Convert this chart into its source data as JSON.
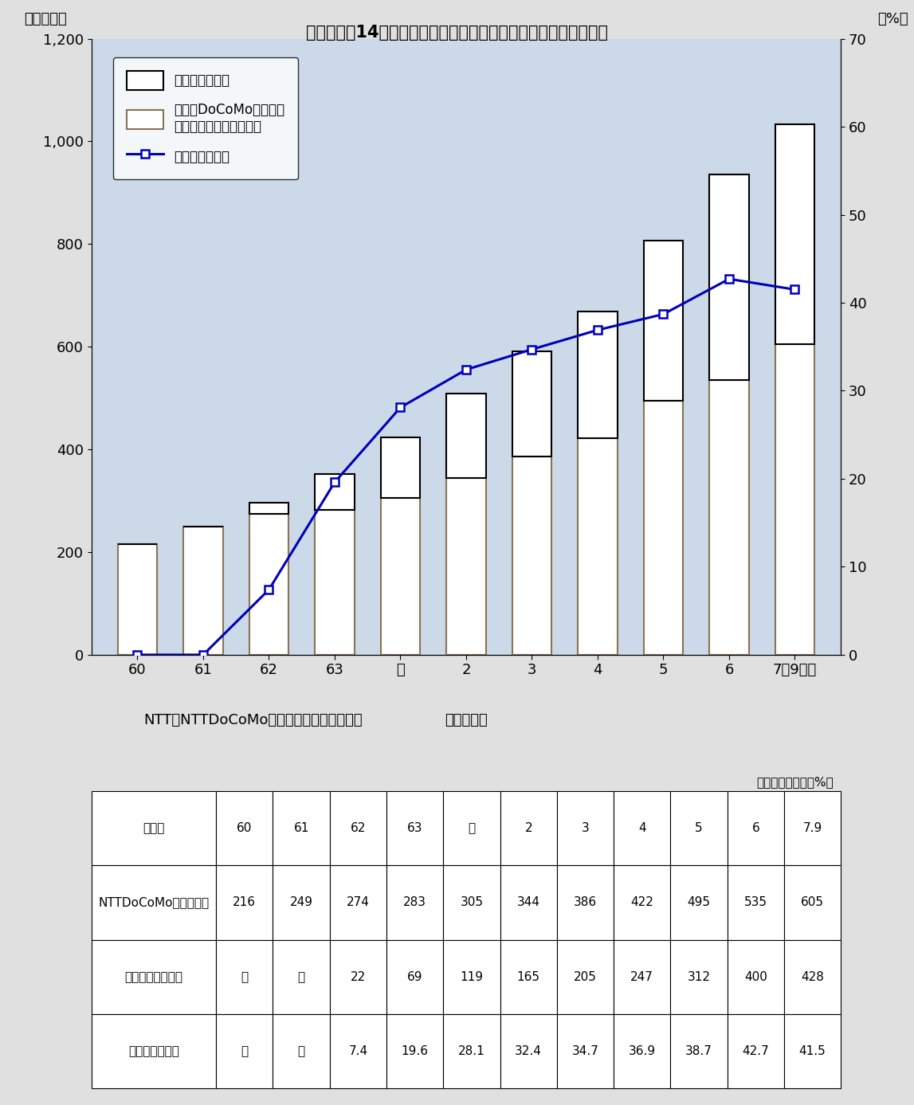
{
  "title": "第１－１－14図　無線呼出し契約数及び新事業者のシェアの推移",
  "categories": [
    "60",
    "61",
    "62",
    "63",
    "元",
    "2",
    "3",
    "4",
    "5",
    "6",
    "7年9月末"
  ],
  "xlabel": "（年度末）",
  "ylabel_left": "（万契約）",
  "ylabel_right": "（%）",
  "ntt_values": [
    216,
    249,
    274,
    283,
    305,
    344,
    386,
    422,
    495,
    535,
    605
  ],
  "new_values": [
    0,
    0,
    22,
    69,
    119,
    165,
    205,
    247,
    312,
    400,
    428
  ],
  "share_values": [
    0,
    0,
    7.4,
    19.6,
    28.1,
    32.4,
    34.7,
    36.9,
    38.7,
    42.7,
    41.5
  ],
  "share_has_data": [
    false,
    false,
    true,
    true,
    true,
    true,
    true,
    true,
    true,
    true,
    true
  ],
  "ylim_left": [
    0,
    1200
  ],
  "ylim_right": [
    0,
    70
  ],
  "yticks_left": [
    0,
    200,
    400,
    600,
    800,
    1000,
    1200
  ],
  "yticks_right": [
    0,
    10,
    20,
    30,
    40,
    50,
    60,
    70
  ],
  "bar_bg_color": "#ccd9e8",
  "ntt_bar_color": "#ffffff",
  "ntt_bar_edge": "#8B7355",
  "new_bar_color": "#ffffff",
  "new_bar_edge": "#000000",
  "line_color": "#0000bb",
  "source_text": "NTT、NTTDoCoMo等、新事業者により作成",
  "legend_new_label": "新事業者契約数",
  "legend_ntt_label": "ＮＴＴDoCoMo等契約数\n（３年度以前はＮＴＴ）",
  "legend_share_label": "新事業者シェア",
  "table_header": [
    "年度末",
    "60",
    "61",
    "62",
    "63",
    "元",
    "2",
    "3",
    "4",
    "5",
    "6",
    "7.9"
  ],
  "table_row1_label": "NTTDoCoMo等の契約数",
  "table_row1": [
    "216",
    "249",
    "274",
    "283",
    "305",
    "344",
    "386",
    "422",
    "495",
    "535",
    "605"
  ],
  "table_row2_label": "新事業者の契約数",
  "table_row2": [
    "－",
    "－",
    "22",
    "69",
    "119",
    "165",
    "205",
    "247",
    "312",
    "400",
    "428"
  ],
  "table_row3_label": "新事業者シェア",
  "table_row3": [
    "－",
    "－",
    "7.4",
    "19.6",
    "28.1",
    "32.4",
    "34.7",
    "36.9",
    "38.7",
    "42.7",
    "41.5"
  ],
  "unit_text": "（単位：万契約、%）"
}
